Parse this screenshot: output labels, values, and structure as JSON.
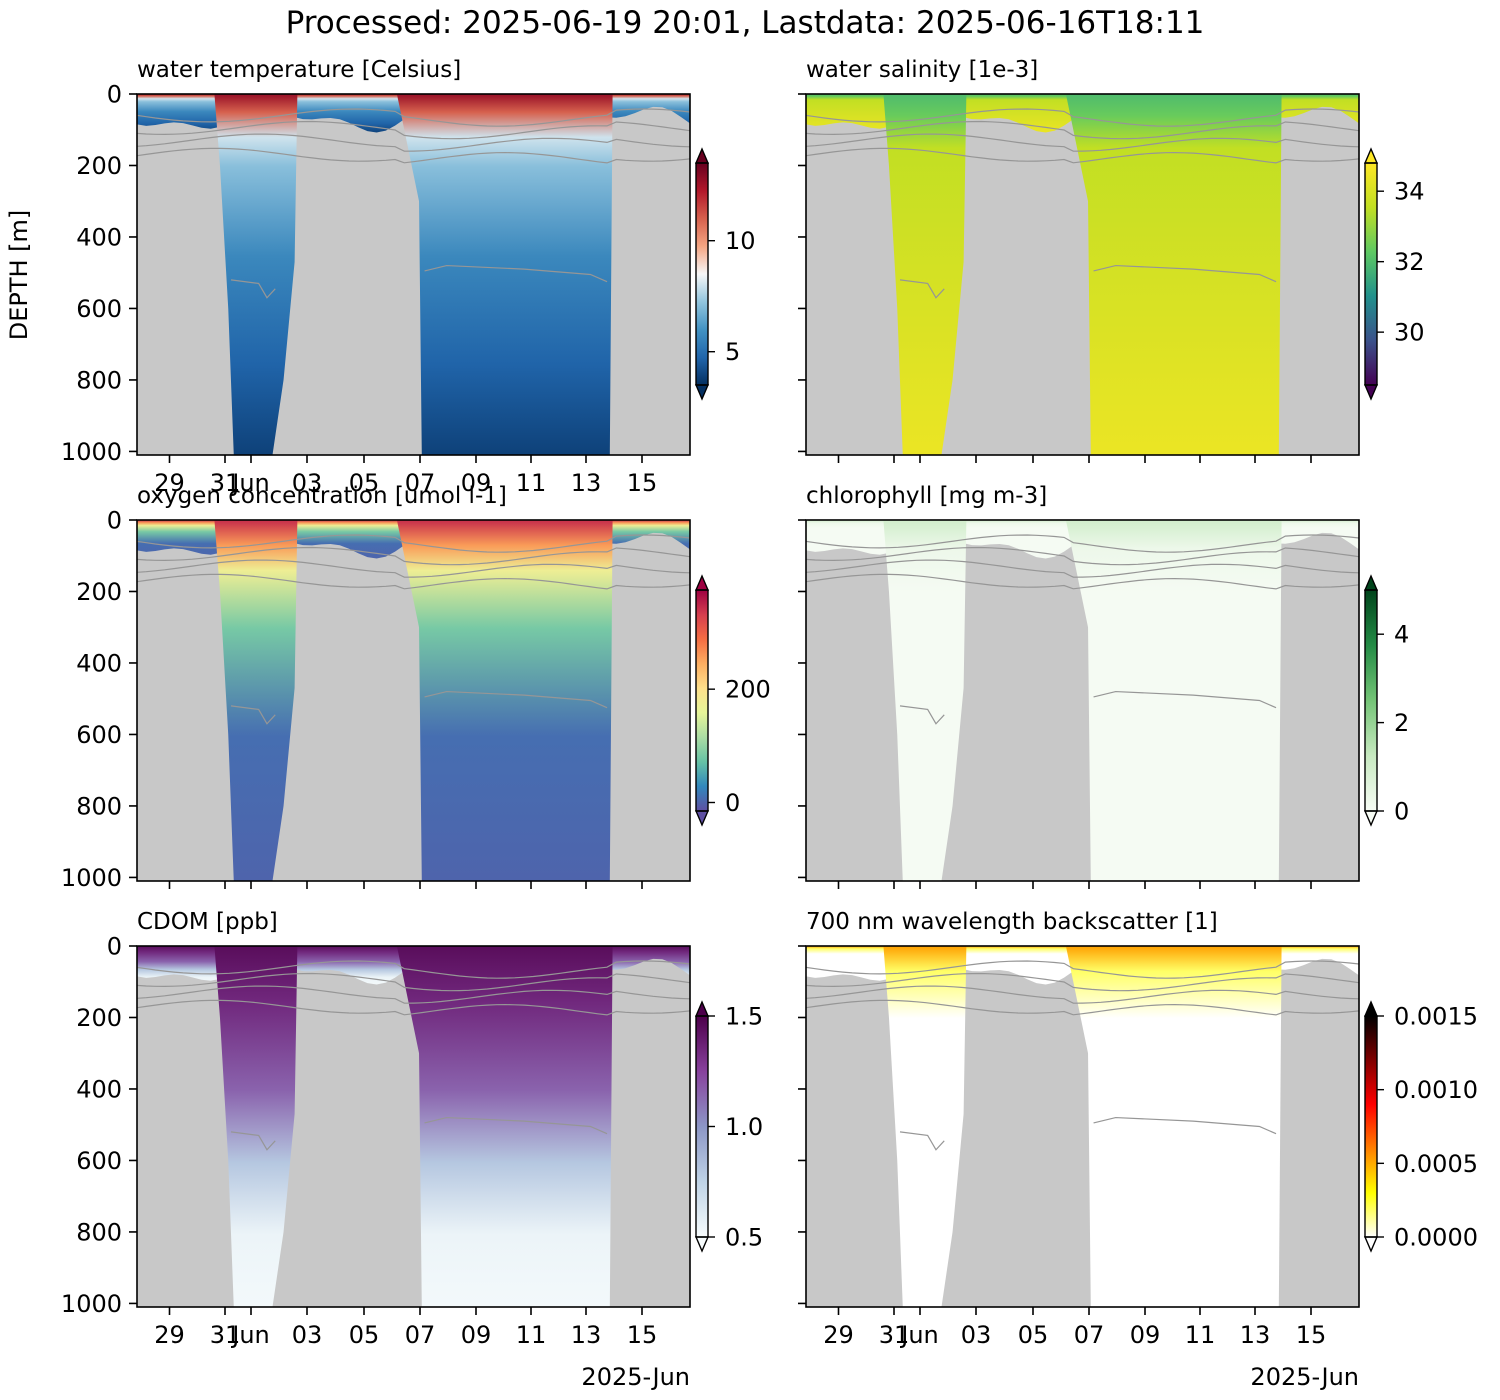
{
  "figure": {
    "suptitle": "Processed: 2025-06-19 20:01, Lastdata: 2025-06-16T18:11",
    "ylabel": "DEPTH [m]",
    "xlabel_suffix": "2025-Jun",
    "background_fill": "#c8c8c8",
    "contour_color": "#969696"
  },
  "chart_data": [
    {
      "type": "heatmap",
      "title": "water temperature [Celsius]",
      "ylabel": "DEPTH [m]",
      "yticks": [
        "0",
        "200",
        "400",
        "600",
        "800",
        "1000"
      ],
      "xticks": [
        "29",
        "31",
        "Jun",
        "03",
        "05",
        "07",
        "09",
        "11",
        "13",
        "15"
      ],
      "xlabel": "",
      "colormap": "RdBu_r",
      "colors": [
        "#053061",
        "#2166ac",
        "#4393c3",
        "#92c5de",
        "#f7f7f7",
        "#f4a582",
        "#d6604d",
        "#b2182b",
        "#67001f"
      ],
      "clim": [
        3.5,
        13.5
      ],
      "cbar_ticks": [
        "5",
        "10"
      ],
      "cbar_tick_values": [
        5,
        10
      ],
      "fill_kind": "temp"
    },
    {
      "type": "heatmap",
      "title": "water salinity [1e-3]",
      "ylabel": "",
      "yticks": [
        "",
        "",
        "",
        "",
        "",
        ""
      ],
      "xticks": [
        "",
        "",
        "",
        "",
        "",
        "",
        "",
        "",
        "",
        ""
      ],
      "xlabel": "",
      "colormap": "viridis",
      "colors": [
        "#440154",
        "#3b528b",
        "#21918c",
        "#5ec962",
        "#c2df23",
        "#fde725"
      ],
      "clim": [
        28.5,
        34.8
      ],
      "cbar_ticks": [
        "30",
        "32",
        "34"
      ],
      "cbar_tick_values": [
        30,
        32,
        34
      ],
      "fill_kind": "sal"
    },
    {
      "type": "heatmap",
      "title": "oxygen concentration [umol l-1]",
      "ylabel": "",
      "yticks": [
        "0",
        "200",
        "400",
        "600",
        "800",
        "1000"
      ],
      "xticks": [
        "",
        "",
        "",
        "",
        "",
        "",
        "",
        "",
        "",
        ""
      ],
      "xlabel": "",
      "colormap": "Spectral_r",
      "colors": [
        "#5e4fa2",
        "#3288bd",
        "#66c2a5",
        "#abdda4",
        "#e6f598",
        "#fee08b",
        "#fdae61",
        "#f46d43",
        "#d53e4f",
        "#9e0142"
      ],
      "clim": [
        -15,
        375
      ],
      "cbar_ticks": [
        "0",
        "200"
      ],
      "cbar_tick_values": [
        0,
        200
      ],
      "fill_kind": "oxy"
    },
    {
      "type": "heatmap",
      "title": "chlorophyll [mg m-3]",
      "ylabel": "",
      "yticks": [
        "",
        "",
        "",
        "",
        "",
        ""
      ],
      "xticks": [
        "",
        "",
        "",
        "",
        "",
        "",
        "",
        "",
        "",
        ""
      ],
      "xlabel": "",
      "colormap": "Greens",
      "colors": [
        "#f7fcf5",
        "#c7e9c0",
        "#74c476",
        "#238b45",
        "#00441b"
      ],
      "clim": [
        0,
        5
      ],
      "cbar_ticks": [
        "0",
        "2",
        "4"
      ],
      "cbar_tick_values": [
        0,
        2,
        4
      ],
      "fill_kind": "chl"
    },
    {
      "type": "heatmap",
      "title": "CDOM [ppb]",
      "ylabel": "",
      "yticks": [
        "0",
        "200",
        "400",
        "600",
        "800",
        "1000"
      ],
      "xticks": [
        "29",
        "31",
        "Jun",
        "03",
        "05",
        "07",
        "09",
        "11",
        "13",
        "15"
      ],
      "xlabel": "2025-Jun",
      "colormap": "BuPu",
      "colors": [
        "#f7fcfd",
        "#bfd3e6",
        "#8c96c6",
        "#88419d",
        "#4d004b"
      ],
      "clim": [
        0.5,
        1.5
      ],
      "cbar_ticks": [
        "0.5",
        "1.0",
        "1.5"
      ],
      "cbar_tick_values": [
        0.5,
        1.0,
        1.5
      ],
      "fill_kind": "cdom"
    },
    {
      "type": "heatmap",
      "title": "700 nm wavelength backscatter [1]",
      "ylabel": "",
      "yticks": [
        "",
        "",
        "",
        "",
        "",
        ""
      ],
      "xticks": [
        "29",
        "31",
        "Jun",
        "03",
        "05",
        "07",
        "09",
        "11",
        "13",
        "15"
      ],
      "xlabel": "2025-Jun",
      "colormap": "hot_r",
      "colors": [
        "#ffffff",
        "#ffff00",
        "#ff8000",
        "#ff0000",
        "#800000",
        "#000000"
      ],
      "clim": [
        0.0,
        0.0015
      ],
      "cbar_ticks": [
        "0.0000",
        "0.0005",
        "0.0010",
        "0.0015"
      ],
      "cbar_tick_values": [
        0.0,
        0.0005,
        0.001,
        0.0015
      ],
      "fill_kind": "bb"
    }
  ]
}
